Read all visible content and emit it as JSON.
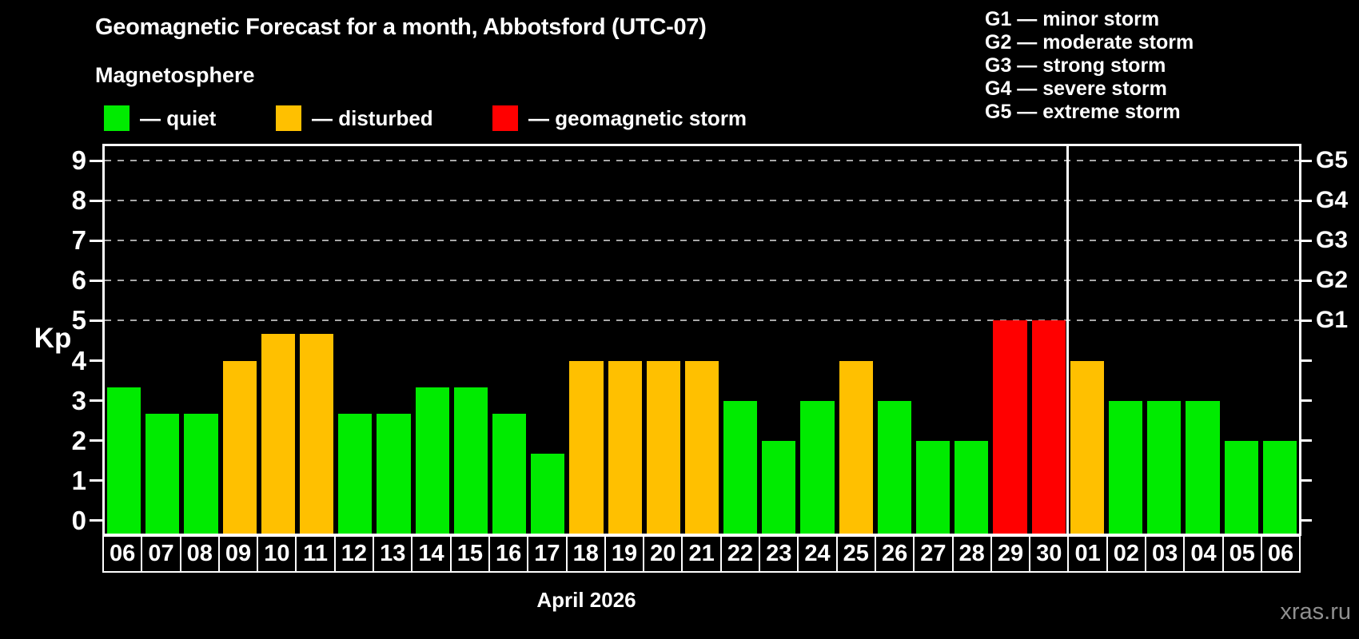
{
  "title": "Geomagnetic Forecast for a month, Abbotsford (UTC-07)",
  "legend": {
    "heading": "Magnetosphere",
    "items": [
      {
        "key": "quiet",
        "label": "— quiet",
        "color": "#00eb00"
      },
      {
        "key": "disturbed",
        "label": "— disturbed",
        "color": "#ffc000"
      },
      {
        "key": "storm",
        "label": "— geomagnetic storm",
        "color": "#ff0000"
      }
    ]
  },
  "g_scale_legend": [
    "G1 — minor storm",
    "G2 — moderate storm",
    "G3 — strong storm",
    "G4 — severe storm",
    "G5 — extreme storm"
  ],
  "watermark": "xras.ru",
  "chart_data": {
    "type": "bar",
    "title": "Geomagnetic Forecast for a month, Abbotsford (UTC-07)",
    "ylabel": "Kp",
    "xlabel": "April 2026",
    "ylim": [
      0,
      9
    ],
    "yticks": [
      0,
      1,
      2,
      3,
      4,
      5,
      6,
      7,
      8,
      9
    ],
    "grid": "dashed horizontal lines at Kp 5-9 only",
    "gridlines_at": [
      5,
      6,
      7,
      8,
      9
    ],
    "right_axis_labels": [
      {
        "kp": 5,
        "label": "G1"
      },
      {
        "kp": 6,
        "label": "G2"
      },
      {
        "kp": 7,
        "label": "G3"
      },
      {
        "kp": 8,
        "label": "G4"
      },
      {
        "kp": 9,
        "label": "G5"
      }
    ],
    "month_boundary_after_index": 24,
    "categories": [
      "06",
      "07",
      "08",
      "09",
      "10",
      "11",
      "12",
      "13",
      "14",
      "15",
      "16",
      "17",
      "18",
      "19",
      "20",
      "21",
      "22",
      "23",
      "24",
      "25",
      "26",
      "27",
      "28",
      "29",
      "30",
      "01",
      "02",
      "03",
      "04",
      "05",
      "06"
    ],
    "values": [
      3.33,
      2.67,
      2.67,
      4,
      4.67,
      4.67,
      2.67,
      2.67,
      3.33,
      3.33,
      2.67,
      1.67,
      4,
      4,
      4,
      4,
      3,
      2,
      3,
      4,
      3,
      2,
      2,
      5,
      5,
      4,
      3,
      3,
      3,
      2,
      2
    ],
    "statuses": [
      "quiet",
      "quiet",
      "quiet",
      "disturbed",
      "disturbed",
      "disturbed",
      "quiet",
      "quiet",
      "quiet",
      "quiet",
      "quiet",
      "quiet",
      "disturbed",
      "disturbed",
      "disturbed",
      "disturbed",
      "quiet",
      "quiet",
      "quiet",
      "disturbed",
      "quiet",
      "quiet",
      "quiet",
      "storm",
      "storm",
      "disturbed",
      "quiet",
      "quiet",
      "quiet",
      "quiet",
      "quiet"
    ],
    "colors_by_status": {
      "quiet": "#00eb00",
      "disturbed": "#ffc000",
      "storm": "#ff0000"
    },
    "grid_color": "#a8a8a8",
    "axis_color": "#ffffff",
    "background_color": "#000000"
  }
}
